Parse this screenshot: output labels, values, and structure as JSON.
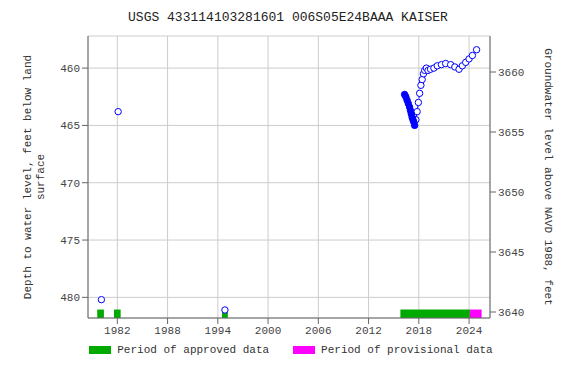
{
  "chart_data": {
    "type": "scatter",
    "title": "USGS 433114103281601 006S05E24BAAA KAISER",
    "ylabel": "Depth to water level, feet below land\nsurface",
    "y2label": "Groundwater level above NAVD 1988, feet",
    "xlim": [
      1978.5,
      2026.5
    ],
    "xticks": [
      1982,
      1988,
      1994,
      2000,
      2006,
      2012,
      2018,
      2024
    ],
    "ylim": [
      481.8,
      457.2
    ],
    "yticks": [
      460,
      465,
      470,
      475,
      480
    ],
    "y2lim": [
      3639.5,
      3663.0
    ],
    "y2ticks": [
      3640,
      3645,
      3650,
      3655,
      3660
    ],
    "grid": true,
    "series": [
      {
        "type": "line",
        "line_style": "dashed",
        "color": "#0000ff",
        "x": [
          2016.3,
          2016.45,
          2016.6,
          2016.75,
          2016.9,
          2017.0,
          2017.1,
          2017.2,
          2017.3,
          2017.4,
          2017.5,
          2017.65,
          2017.8,
          2017.95,
          2018.1,
          2018.25,
          2018.4,
          2018.55,
          2018.7,
          2018.9,
          2019.1,
          2019.4,
          2019.8,
          2020.2,
          2020.7,
          2021.2,
          2021.8,
          2022.3,
          2022.8,
          2023.2,
          2023.6,
          2024.0,
          2024.4,
          2024.9
        ],
        "values": [
          462.3,
          462.5,
          462.8,
          463.1,
          463.4,
          463.7,
          464.0,
          464.3,
          464.5,
          464.7,
          465.0,
          464.5,
          463.8,
          463.0,
          462.2,
          461.5,
          461.0,
          460.5,
          460.2,
          460.0,
          460.2,
          460.1,
          460.0,
          459.8,
          459.7,
          459.6,
          459.7,
          459.9,
          460.1,
          459.8,
          459.5,
          459.2,
          458.9,
          458.4
        ]
      },
      {
        "type": "scatter",
        "marker": "open_circle",
        "color": "#0000ff",
        "x": [
          1980.1,
          1982.1,
          1994.85,
          2017.65,
          2017.8,
          2017.95,
          2018.1,
          2018.25,
          2018.4,
          2018.55,
          2018.7,
          2018.9,
          2019.1,
          2019.4,
          2019.8,
          2020.2,
          2020.7,
          2021.2,
          2021.8,
          2022.3,
          2022.8,
          2023.2,
          2023.6,
          2024.0,
          2024.4,
          2024.9
        ],
        "values": [
          480.2,
          463.8,
          481.1,
          464.5,
          463.8,
          463.0,
          462.2,
          461.5,
          461.0,
          460.5,
          460.2,
          460.0,
          460.2,
          460.1,
          460.0,
          459.8,
          459.7,
          459.6,
          459.7,
          459.9,
          460.1,
          459.8,
          459.5,
          459.2,
          458.9,
          458.4
        ]
      },
      {
        "type": "scatter",
        "marker": "circle",
        "color": "#0000ff",
        "x": [
          2016.3,
          2016.45,
          2016.6,
          2016.75,
          2016.9,
          2017.0,
          2017.1,
          2017.2,
          2017.3,
          2017.4,
          2017.5
        ],
        "values": [
          462.3,
          462.5,
          462.8,
          463.1,
          463.4,
          463.7,
          464.0,
          464.3,
          464.5,
          464.7,
          465.0
        ]
      },
      {
        "type": "span",
        "name": "Period of approved data",
        "color": "#00aa00",
        "ranges": [
          [
            1979.6,
            1980.4
          ],
          [
            1981.6,
            1982.4
          ],
          [
            1994.5,
            1995.2
          ],
          [
            2015.8,
            2024.1
          ]
        ]
      },
      {
        "type": "span",
        "name": "Period of provisional data",
        "color": "#ff00ff",
        "ranges": [
          [
            2024.1,
            2025.5
          ]
        ]
      }
    ]
  }
}
